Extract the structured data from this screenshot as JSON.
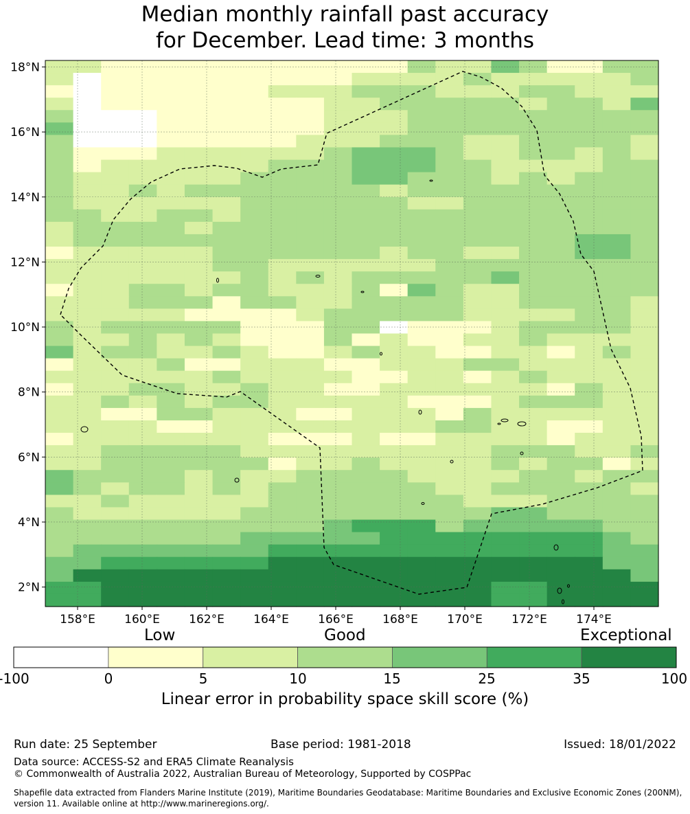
{
  "title": {
    "line1": "Median monthly rainfall past accuracy",
    "line2": "for December. Lead time: 3 months"
  },
  "map": {
    "lon_range": [
      157,
      176
    ],
    "lat_range": [
      1.4,
      18.2
    ],
    "x_ticks": [
      {
        "value": 158,
        "label": "158°E"
      },
      {
        "value": 160,
        "label": "160°E"
      },
      {
        "value": 162,
        "label": "162°E"
      },
      {
        "value": 164,
        "label": "164°E"
      },
      {
        "value": 166,
        "label": "166°E"
      },
      {
        "value": 168,
        "label": "168°E"
      },
      {
        "value": 170,
        "label": "170°E"
      },
      {
        "value": 172,
        "label": "172°E"
      },
      {
        "value": 174,
        "label": "174°E"
      }
    ],
    "y_ticks": [
      {
        "value": 18,
        "label": "18°N"
      },
      {
        "value": 16,
        "label": "16°N"
      },
      {
        "value": 14,
        "label": "14°N"
      },
      {
        "value": 12,
        "label": "12°N"
      },
      {
        "value": 10,
        "label": "10°N"
      },
      {
        "value": 8,
        "label": "8°N"
      },
      {
        "value": 6,
        "label": "6°N"
      },
      {
        "value": 4,
        "label": "4°N"
      },
      {
        "value": 2,
        "label": "2°N"
      }
    ],
    "grid": true,
    "boundary": "dashed EEZ outline",
    "category_colors": [
      "#ffffff",
      "#ffffcc",
      "#d9f0a3",
      "#addd8e",
      "#78c679",
      "#41ab5d",
      "#238443"
    ],
    "cell_grid": [
      "2211111111111322431133",
      "2011111111122223222223",
      "1011111122233322233222",
      "2011111111223333323324",
      "3000111111222333333333",
      "4000111111222333333333",
      "3000111112223332233332",
      "3111222222344432233232",
      "3122222233344433222233",
      "3222222333344333232333",
      "3223233333332333333333",
      "3222222333333223333333",
      "3322332333333333333333",
      "2333323333333333333333",
      "2333333333333333333443",
      "1222223333332332233443",
      "2222223322222233333333",
      "2222222323233333433333",
      "1223323322231432233333",
      "2223331332233332233332",
      "2222211112333332222332",
      "3233333111330111233332",
      "3223232111312112232222",
      "4233223211232211221232",
      "1222311222112223322222",
      "2222223222211221232222",
      "1223322322112222221322",
      "2232323322222111233322",
      "2211332221122213222222",
      "2222112222222233221122",
      "1222222211121122221222",
      "2233333222222222333223",
      "2233333312232222323312",
      "4333323223333222233233",
      "4323323233333322333332",
      "2232222233333332223333",
      "3222222333333333443333",
      "3333333333455534444433",
      "3333333444445555555543",
      "3444444455555555555544",
      "4455555566666666666644",
      "4666666666666666666664",
      "5566666666666666556666",
      "5566666666666666556666"
    ]
  },
  "colorbar": {
    "categories": [
      "Low",
      "Good",
      "Exceptional"
    ],
    "ticks": [
      "-100",
      "0",
      "5",
      "10",
      "15",
      "25",
      "35",
      "100"
    ],
    "colors": [
      "#ffffff",
      "#ffffcc",
      "#d9f0a3",
      "#addd8e",
      "#78c679",
      "#41ab5d",
      "#238443"
    ],
    "label": "Linear error in probability space skill score (%)"
  },
  "footer": {
    "run_date": "Run date: 25 September",
    "base_period": "Base period: 1981-2018",
    "issued": "Issued: 18/01/2022",
    "data_source": "Data source: ACCESS-S2 and ERA5 Climate Reanalysis",
    "copyright": "© Commonwealth of Australia 2022, Australian Bureau of Meteorology, Supported by COSPPac",
    "shapefile_line1": "Shapefile data extracted from Flanders Marine Institute (2019), Maritime Boundaries Geodatabase: Maritime Boundaries and Exclusive Economic Zones (200NM),",
    "shapefile_line2": "version 11. Available online at http://www.marineregions.org/."
  }
}
